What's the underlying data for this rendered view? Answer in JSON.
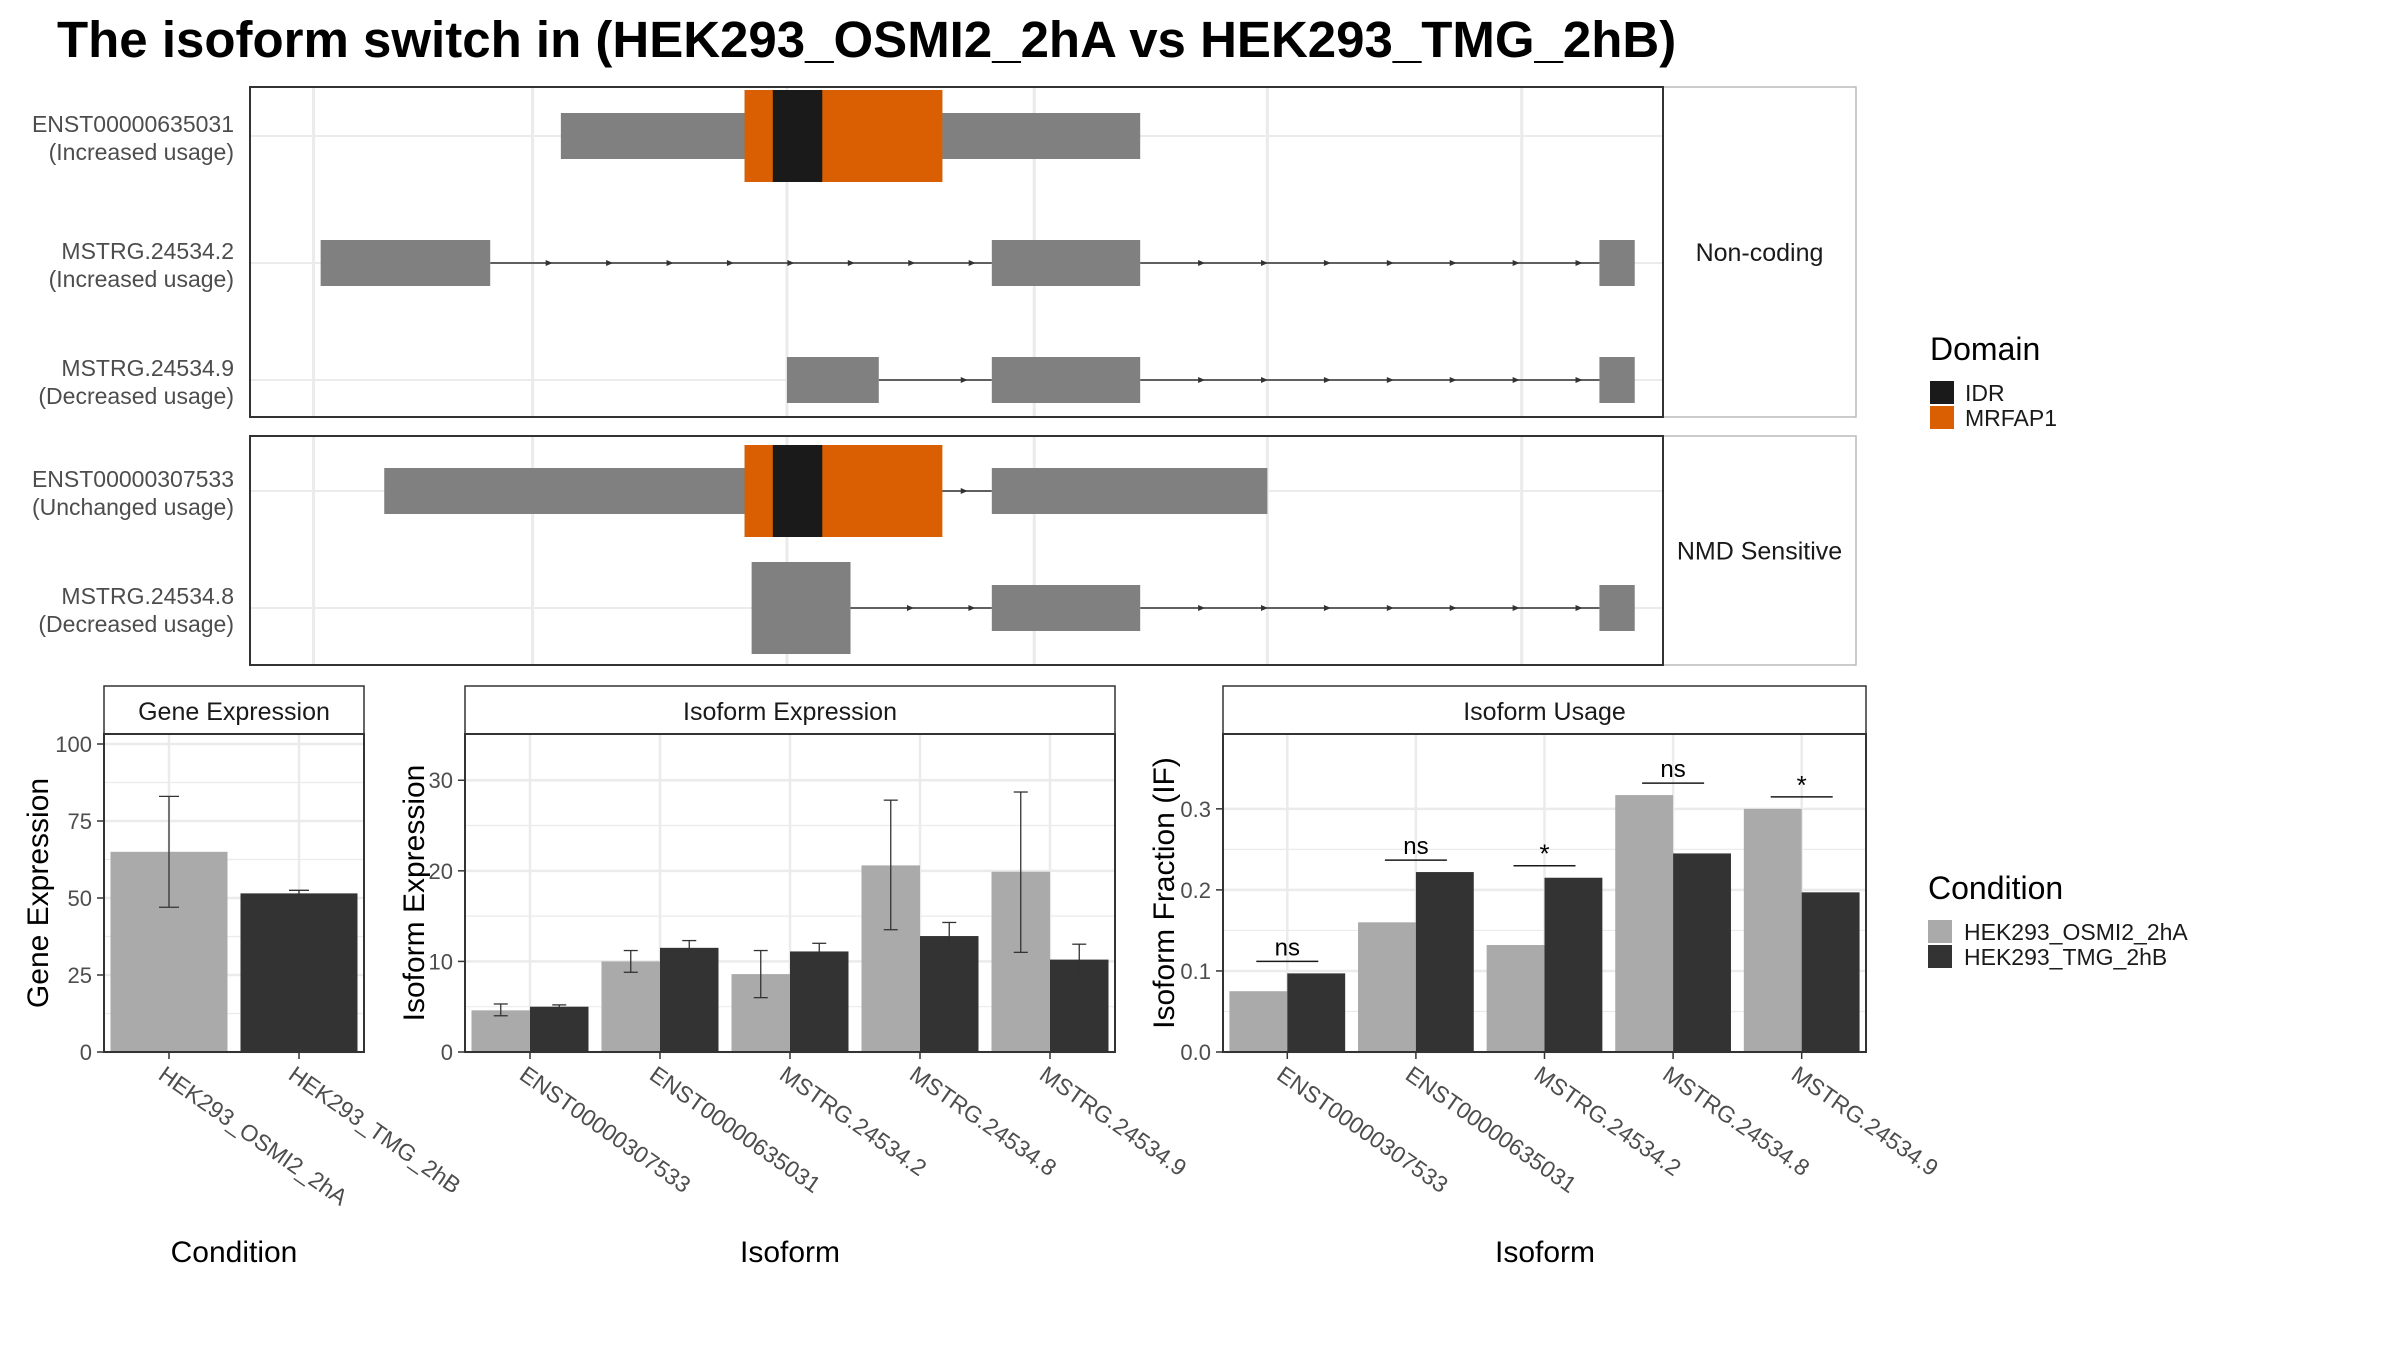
{
  "title": "The isoform switch in  (HEK293_OSMI2_2hA vs HEK293_TMG_2hB)",
  "colors": {
    "exon": "#808080",
    "IDR": "#1a1a1a",
    "MRFAP1": "#d95f02",
    "cond_A": "#aaaaaa",
    "cond_B": "#333333",
    "grid": "#ebebeb",
    "strip_fill": "#ffffff"
  },
  "transcript_groups": [
    {
      "label": "Non-coding",
      "transcripts": [
        {
          "name": "ENST00000635031",
          "usage": "(Increased usage)",
          "exons": [
            [
              0.22,
              0.63
            ]
          ],
          "cds": [
            0.35,
            0.49
          ],
          "domains": [
            {
              "type": "MRFAP1",
              "range": [
                0.35,
                0.49
              ]
            },
            {
              "type": "IDR",
              "range": [
                0.37,
                0.405
              ]
            }
          ]
        },
        {
          "name": "MSTRG.24534.2",
          "usage": "(Increased usage)",
          "exons": [
            [
              0.05,
              0.17
            ],
            [
              0.525,
              0.63
            ],
            [
              0.955,
              0.98
            ]
          ],
          "cds": null,
          "domains": []
        },
        {
          "name": "MSTRG.24534.9",
          "usage": "(Decreased usage)",
          "exons": [
            [
              0.38,
              0.445
            ],
            [
              0.525,
              0.63
            ],
            [
              0.955,
              0.98
            ]
          ],
          "cds": null,
          "domains": []
        }
      ]
    },
    {
      "label": "NMD Sensitive",
      "transcripts": [
        {
          "name": "ENST00000307533",
          "usage": "(Unchanged usage)",
          "exons": [
            [
              0.095,
              0.445
            ],
            [
              0.525,
              0.72
            ]
          ],
          "cds": [
            0.35,
            0.49
          ],
          "domains": [
            {
              "type": "MRFAP1",
              "range": [
                0.35,
                0.49
              ]
            },
            {
              "type": "IDR",
              "range": [
                0.37,
                0.405
              ]
            }
          ]
        },
        {
          "name": "MSTRG.24534.8",
          "usage": "(Decreased usage)",
          "exons": [
            [
              0.355,
              0.425
            ],
            [
              0.525,
              0.63
            ],
            [
              0.955,
              0.98
            ]
          ],
          "cds": [
            0.355,
            0.425
          ],
          "domains": []
        }
      ]
    }
  ],
  "domain_legend": {
    "title": "Domain",
    "items": [
      {
        "label": "IDR",
        "color": "#1a1a1a"
      },
      {
        "label": "MRFAP1",
        "color": "#d95f02"
      }
    ]
  },
  "condition_legend": {
    "title": "Condition",
    "items": [
      {
        "label": "HEK293_OSMI2_2hA",
        "color": "#aaaaaa"
      },
      {
        "label": "HEK293_TMG_2hB",
        "color": "#333333"
      }
    ]
  },
  "chart_data": [
    {
      "type": "bar",
      "title": "Gene Expression",
      "xlabel": "Condition",
      "ylabel": "Gene Expression",
      "ylim": [
        0,
        100
      ],
      "yticks": [
        0,
        25,
        50,
        75,
        100
      ],
      "categories": [
        "HEK293_OSMI2_2hA",
        "HEK293_TMG_2hB"
      ],
      "values": [
        65,
        51.5
      ],
      "errors": [
        [
          47,
          83
        ],
        [
          51,
          52.5
        ]
      ]
    },
    {
      "type": "bar",
      "title": "Isoform Expression",
      "xlabel": "Isoform",
      "ylabel": "Isoform Expression",
      "ylim": [
        0,
        34
      ],
      "yticks": [
        0,
        10,
        20,
        30
      ],
      "categories": [
        "ENST00000307533",
        "ENST00000635031",
        "MSTRG.24534.2",
        "MSTRG.24534.8",
        "MSTRG.24534.9"
      ],
      "series": [
        {
          "name": "HEK293_OSMI2_2hA",
          "values": [
            4.6,
            10.0,
            8.6,
            20.6,
            19.9
          ],
          "errors": [
            [
              4.0,
              5.3
            ],
            [
              8.8,
              11.2
            ],
            [
              6.0,
              11.2
            ],
            [
              13.5,
              27.8
            ],
            [
              11.0,
              28.7
            ]
          ]
        },
        {
          "name": "HEK293_TMG_2hB",
          "values": [
            5.0,
            11.5,
            11.1,
            12.8,
            10.2
          ],
          "errors": [
            [
              4.8,
              5.2
            ],
            [
              10.8,
              12.3
            ],
            [
              10.2,
              12.0
            ],
            [
              11.2,
              14.3
            ],
            [
              8.4,
              11.9
            ]
          ]
        }
      ]
    },
    {
      "type": "bar",
      "title": "Isoform Usage",
      "xlabel": "Isoform",
      "ylabel": "Isoform Fraction (IF)",
      "ylim": [
        0,
        0.38
      ],
      "yticks": [
        0.0,
        0.1,
        0.2,
        0.3
      ],
      "ytick_labels": [
        "0.0",
        "0.1",
        "0.2",
        "0.3"
      ],
      "categories": [
        "ENST00000307533",
        "ENST00000635031",
        "MSTRG.24534.2",
        "MSTRG.24534.8",
        "MSTRG.24534.9"
      ],
      "series": [
        {
          "name": "HEK293_OSMI2_2hA",
          "values": [
            0.075,
            0.16,
            0.132,
            0.317,
            0.3
          ]
        },
        {
          "name": "HEK293_TMG_2hB",
          "values": [
            0.097,
            0.222,
            0.215,
            0.245,
            0.197
          ]
        }
      ],
      "significance": [
        "ns",
        "ns",
        "*",
        "ns",
        "*"
      ]
    }
  ]
}
